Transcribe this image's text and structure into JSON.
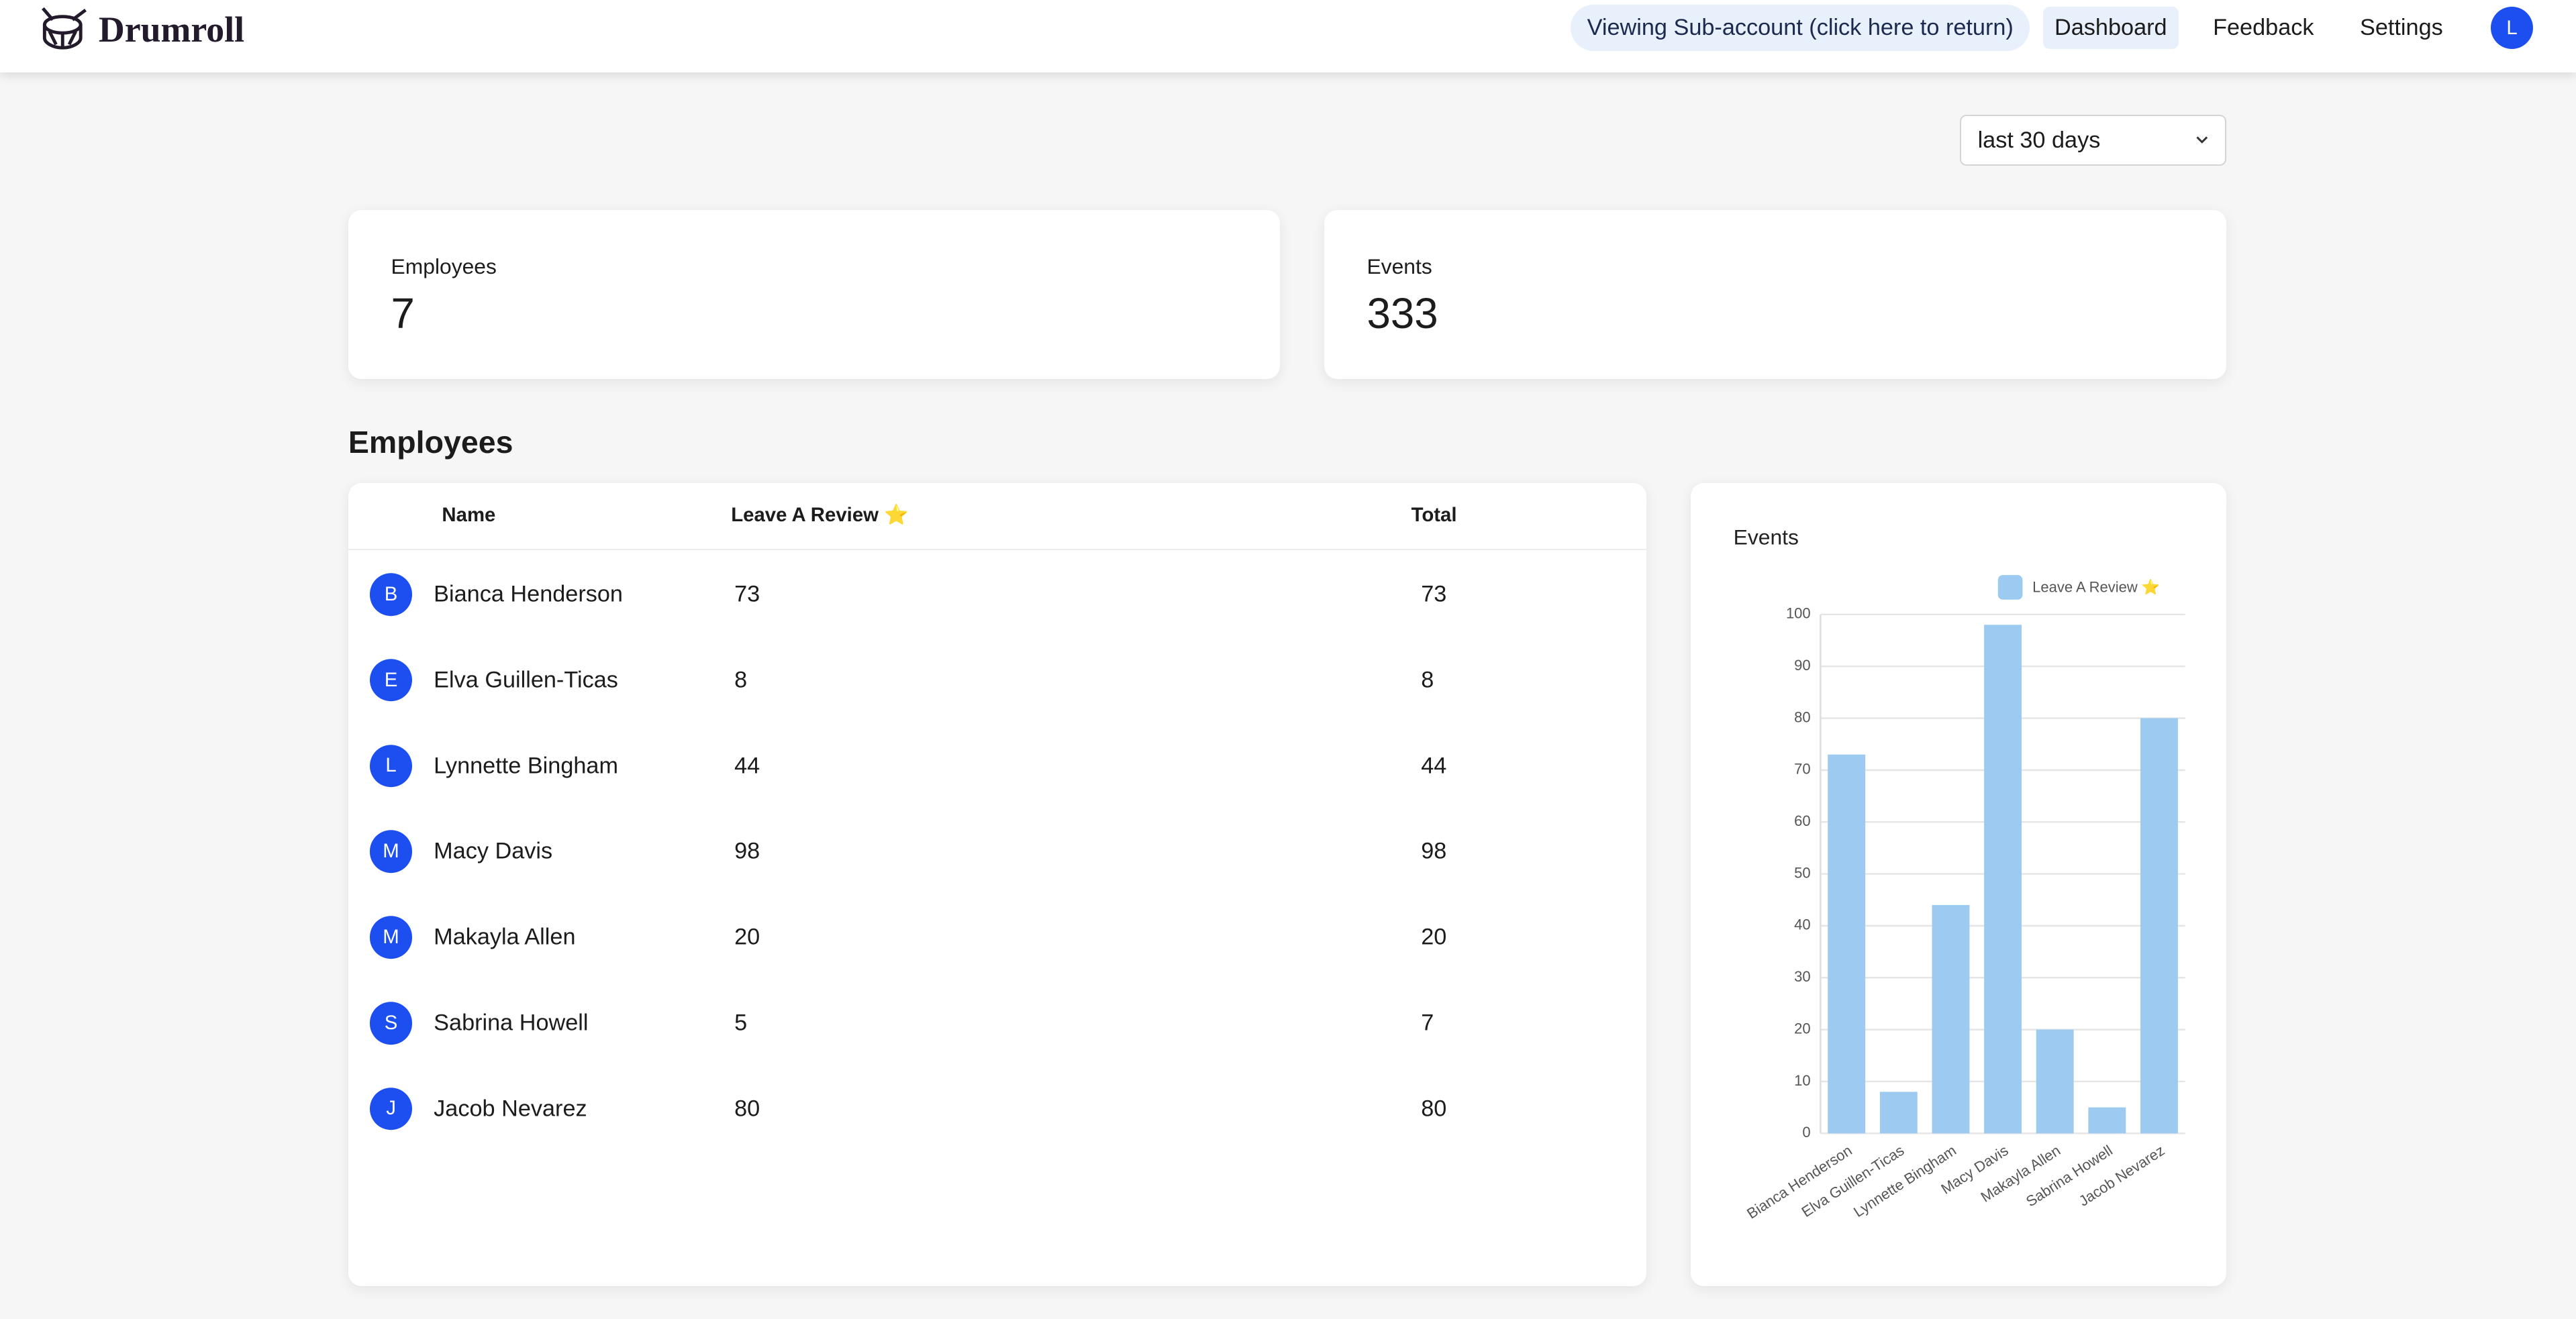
{
  "nav": {
    "brand": "Drumroll",
    "subaccount": "Viewing Sub-account (click here to return)",
    "links": [
      "Dashboard",
      "Feedback",
      "Settings"
    ],
    "avatar": "L"
  },
  "filter": "last 30 days",
  "stats": [
    {
      "label": "Employees",
      "value": 7
    },
    {
      "label": "Events",
      "value": 333
    }
  ],
  "section_title": "Employees",
  "table": {
    "columns": [
      "Name",
      "Leave A Review ⭐",
      "Total"
    ],
    "rows": [
      [
        "B",
        "Bianca Henderson",
        73,
        73
      ],
      [
        "E",
        "Elva Guillen-Ticas",
        8,
        8
      ],
      [
        "L",
        "Lynnette Bingham",
        44,
        44
      ],
      [
        "M",
        "Macy Davis",
        98,
        98
      ],
      [
        "M",
        "Makayla Allen",
        20,
        20
      ],
      [
        "S",
        "Sabrina Howell",
        5,
        7
      ],
      [
        "J",
        "Jacob Nevarez",
        80,
        80
      ]
    ]
  },
  "chart_data": {
    "type": "bar",
    "title": "Events",
    "categories": [
      "Bianca Henderson",
      "Elva Guillen-Ticas",
      "Lynnette Bingham",
      "Macy Davis",
      "Makayla Allen",
      "Sabrina Howell",
      "Jacob Nevarez"
    ],
    "series": [
      {
        "name": "Leave A Review ⭐",
        "color": "#9ccaf0",
        "values": [
          73,
          8,
          44,
          98,
          20,
          5,
          80
        ]
      }
    ],
    "ylim": [
      0,
      100
    ],
    "yticks": [
      0,
      10,
      20,
      30,
      40,
      50,
      60,
      70,
      80,
      90,
      100
    ],
    "grid": true,
    "legend": "top-right"
  }
}
